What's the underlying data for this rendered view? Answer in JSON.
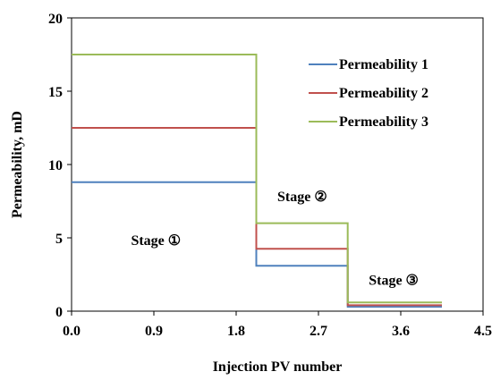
{
  "chart_data": {
    "type": "line",
    "xlabel": "Injection PV number",
    "ylabel": "Permeability, mD",
    "xlim": [
      0,
      4.5
    ],
    "ylim": [
      0,
      20
    ],
    "xticks": [
      0,
      0.9,
      1.8,
      2.7,
      3.6,
      4.5
    ],
    "xtick_labels": [
      "0.0",
      "0.9",
      "1.8",
      "2.7",
      "3.6",
      "4.5"
    ],
    "yticks": [
      0,
      5,
      10,
      15,
      20
    ],
    "ytick_labels": [
      "0",
      "5",
      "10",
      "15",
      "20"
    ],
    "grid": false,
    "legend_position": "top-right",
    "series": [
      {
        "name": "Permeability 1",
        "color": "#4f81bd",
        "x": [
          0,
          2.02,
          2.02,
          3.02,
          3.02,
          4.05
        ],
        "y": [
          8.8,
          8.8,
          3.1,
          3.1,
          0.3,
          0.3
        ]
      },
      {
        "name": "Permeability 2",
        "color": "#c0504d",
        "x": [
          0,
          2.02,
          2.02,
          3.02,
          3.02,
          4.05
        ],
        "y": [
          12.5,
          12.5,
          4.25,
          4.25,
          0.4,
          0.4
        ]
      },
      {
        "name": "Permeability 3",
        "color": "#9bbb59",
        "x": [
          0,
          2.02,
          2.02,
          3.02,
          3.02,
          4.05
        ],
        "y": [
          17.5,
          17.5,
          6.0,
          6.0,
          0.6,
          0.6
        ]
      }
    ],
    "annotations": [
      {
        "text": "Stage ①",
        "x": 0.65,
        "y": 4.5
      },
      {
        "text": "Stage ②",
        "x": 2.25,
        "y": 7.5
      },
      {
        "text": "Stage ③",
        "x": 3.25,
        "y": 1.8
      }
    ]
  }
}
